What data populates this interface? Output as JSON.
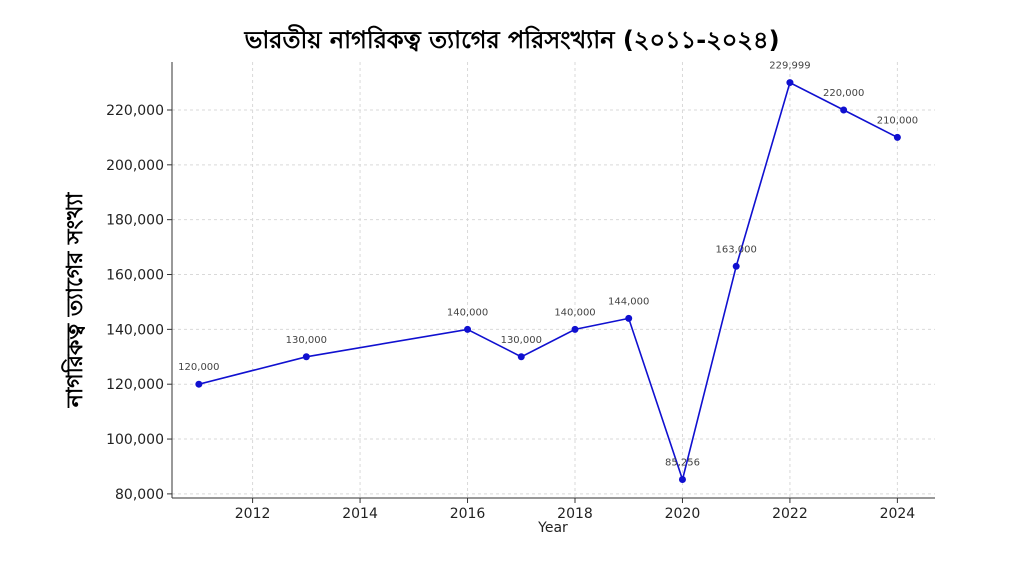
{
  "chart_data": {
    "type": "line",
    "title": "ভারতীয় নাগরিকত্ব ত্যাগের পরিসংখ্যান (২০১১-২০২৪)",
    "xlabel": "Year",
    "ylabel": "নাগরিকত্ব ত্যাগের সংখ্যা",
    "x": [
      2011,
      2013,
      2016,
      2017,
      2018,
      2019,
      2020,
      2021,
      2022,
      2023,
      2024
    ],
    "series": [
      {
        "values": [
          120000,
          130000,
          140000,
          130000,
          140000,
          144000,
          85256,
          163000,
          229999,
          220000,
          210000
        ],
        "labels": [
          "120,000",
          "130,000",
          "140,000",
          "130,000",
          "140,000",
          "144,000",
          "85,256",
          "163,000",
          "229,999",
          "220,000",
          "210,000"
        ],
        "color": "#1010d0"
      }
    ],
    "xticks": [
      2012,
      2014,
      2016,
      2018,
      2020,
      2022,
      2024
    ],
    "xtick_labels": [
      "2012",
      "2014",
      "2016",
      "2018",
      "2020",
      "2022",
      "2024"
    ],
    "yticks": [
      80000,
      100000,
      120000,
      140000,
      160000,
      180000,
      200000,
      220000
    ],
    "ytick_labels": [
      "80,000",
      "100,000",
      "120,000",
      "140,000",
      "160,000",
      "180,000",
      "200,000",
      "220,000"
    ],
    "xlim": [
      2010.5,
      2024.7
    ],
    "ylim": [
      78500,
      237500
    ],
    "grid": true
  }
}
